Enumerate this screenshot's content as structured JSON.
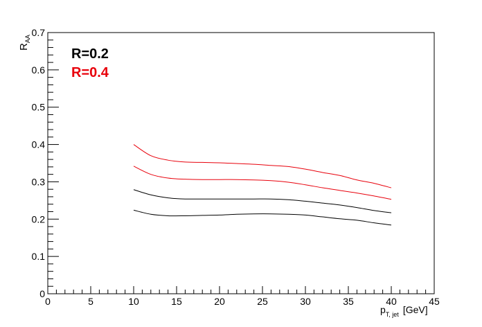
{
  "chart_data": {
    "type": "line",
    "xlabel": {
      "main": "p",
      "sub": "T, jet",
      "unit": "[GeV]"
    },
    "ylabel": {
      "main": "R",
      "sub": "AA"
    },
    "xlim": [
      0,
      45
    ],
    "ylim": [
      0,
      0.7
    ],
    "x_ticks": [
      0,
      5,
      10,
      15,
      20,
      25,
      30,
      35,
      40,
      45
    ],
    "y_ticks": [
      0,
      0.1,
      0.2,
      0.3,
      0.4,
      0.5,
      0.6,
      0.7
    ],
    "x_tick_labels": [
      "0",
      "5",
      "10",
      "15",
      "20",
      "25",
      "30",
      "35",
      "40",
      "45"
    ],
    "y_tick_labels": [
      "0",
      "0.1",
      "0.2",
      "0.3",
      "0.4",
      "0.5",
      "0.6",
      "0.7"
    ],
    "grid": false,
    "legend_position": "top-left",
    "legend": [
      {
        "label": "R=0.2",
        "color": "#000000"
      },
      {
        "label": "R=0.4",
        "color": "#e8000b"
      }
    ],
    "series": [
      {
        "group": "R=0.2",
        "color": "#000000",
        "x": [
          10,
          12,
          14,
          16,
          18,
          20,
          22,
          24,
          26,
          28,
          30,
          32,
          34,
          36,
          38,
          40
        ],
        "y": [
          0.224,
          0.213,
          0.209,
          0.209,
          0.21,
          0.211,
          0.213,
          0.214,
          0.214,
          0.213,
          0.211,
          0.206,
          0.201,
          0.197,
          0.19,
          0.184
        ]
      },
      {
        "group": "R=0.2",
        "color": "#000000",
        "x": [
          10,
          12,
          14,
          16,
          18,
          20,
          22,
          24,
          26,
          28,
          30,
          32,
          34,
          36,
          38,
          40
        ],
        "y": [
          0.279,
          0.265,
          0.257,
          0.254,
          0.254,
          0.254,
          0.254,
          0.254,
          0.254,
          0.252,
          0.248,
          0.243,
          0.238,
          0.231,
          0.223,
          0.217
        ]
      },
      {
        "group": "R=0.4",
        "color": "#e8000b",
        "x": [
          10,
          12,
          14,
          16,
          18,
          20,
          22,
          24,
          26,
          28,
          30,
          32,
          34,
          36,
          38,
          40
        ],
        "y": [
          0.342,
          0.32,
          0.31,
          0.307,
          0.306,
          0.306,
          0.306,
          0.305,
          0.303,
          0.299,
          0.292,
          0.284,
          0.277,
          0.27,
          0.262,
          0.253
        ]
      },
      {
        "group": "R=0.4",
        "color": "#e8000b",
        "x": [
          10,
          12,
          14,
          16,
          18,
          20,
          22,
          24,
          26,
          28,
          30,
          32,
          34,
          36,
          38,
          40
        ],
        "y": [
          0.4,
          0.37,
          0.358,
          0.353,
          0.352,
          0.351,
          0.349,
          0.347,
          0.344,
          0.341,
          0.334,
          0.325,
          0.317,
          0.305,
          0.296,
          0.284
        ]
      }
    ]
  }
}
